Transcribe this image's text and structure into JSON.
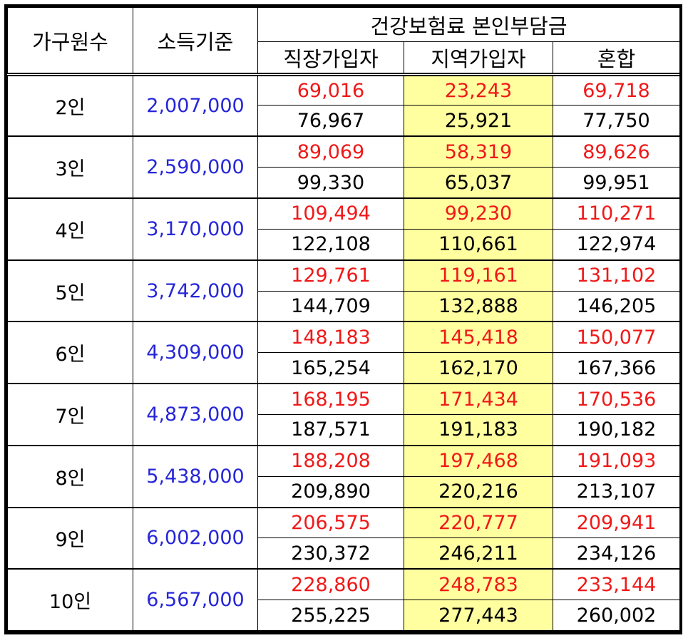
{
  "headers": {
    "household": "가구원수",
    "income": "소득기준",
    "premium_group": "건강보험료 본인부담금",
    "columns": [
      "직장가입자",
      "지역가입자",
      "혼합"
    ]
  },
  "colors": {
    "income_text": "#2626d9",
    "top_value_text": "#f01818",
    "bottom_value_text": "#000000",
    "highlight_column_bg": "#ffffa0"
  },
  "rows": [
    {
      "household": "2인",
      "income": "2,007,000",
      "top": [
        "69,016",
        "23,243",
        "69,718"
      ],
      "bottom": [
        "76,967",
        "25,921",
        "77,750"
      ]
    },
    {
      "household": "3인",
      "income": "2,590,000",
      "top": [
        "89,069",
        "58,319",
        "89,626"
      ],
      "bottom": [
        "99,330",
        "65,037",
        "99,951"
      ]
    },
    {
      "household": "4인",
      "income": "3,170,000",
      "top": [
        "109,494",
        "99,230",
        "110,271"
      ],
      "bottom": [
        "122,108",
        "110,661",
        "122,974"
      ]
    },
    {
      "household": "5인",
      "income": "3,742,000",
      "top": [
        "129,761",
        "119,161",
        "131,102"
      ],
      "bottom": [
        "144,709",
        "132,888",
        "146,205"
      ]
    },
    {
      "household": "6인",
      "income": "4,309,000",
      "top": [
        "148,183",
        "145,418",
        "150,077"
      ],
      "bottom": [
        "165,254",
        "162,170",
        "167,366"
      ]
    },
    {
      "household": "7인",
      "income": "4,873,000",
      "top": [
        "168,195",
        "171,434",
        "170,536"
      ],
      "bottom": [
        "187,571",
        "191,183",
        "190,182"
      ]
    },
    {
      "household": "8인",
      "income": "5,438,000",
      "top": [
        "188,208",
        "197,468",
        "191,093"
      ],
      "bottom": [
        "209,890",
        "220,216",
        "213,107"
      ]
    },
    {
      "household": "9인",
      "income": "6,002,000",
      "top": [
        "206,575",
        "220,777",
        "209,941"
      ],
      "bottom": [
        "230,372",
        "246,211",
        "234,126"
      ]
    },
    {
      "household": "10인",
      "income": "6,567,000",
      "top": [
        "228,860",
        "248,783",
        "233,144"
      ],
      "bottom": [
        "255,225",
        "277,443",
        "260,002"
      ]
    }
  ]
}
